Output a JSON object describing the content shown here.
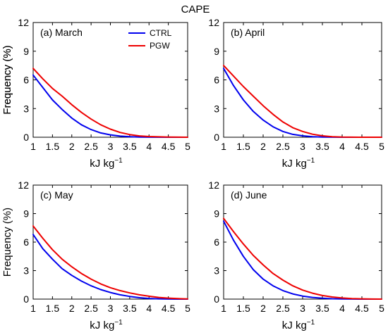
{
  "figure_title": "CAPE",
  "colors": {
    "ctrl": "#0000ee",
    "pgw": "#ee0000"
  },
  "chart_data": [
    {
      "type": "line",
      "panel_label": "(a) March",
      "xlabel": "kJ kg",
      "xlabel_sup": "−1",
      "ylabel": "Frequency (%)",
      "xlim": [
        1,
        5
      ],
      "ylim": [
        0,
        12
      ],
      "xticks": [
        1,
        1.5,
        2,
        2.5,
        3,
        3.5,
        4,
        4.5,
        5
      ],
      "yticks": [
        0,
        3,
        6,
        9,
        12
      ],
      "legend": "top-center",
      "x": [
        1,
        1.25,
        1.5,
        1.75,
        2,
        2.25,
        2.5,
        2.75,
        3,
        3.25,
        3.5,
        3.75,
        4,
        4.5,
        5
      ],
      "series": [
        {
          "name": "CTRL",
          "color": "#0000ee",
          "values": [
            6.5,
            5.2,
            3.9,
            2.9,
            2.0,
            1.3,
            0.8,
            0.45,
            0.25,
            0.12,
            0.05,
            0.02,
            0.01,
            0,
            0
          ]
        },
        {
          "name": "PGW",
          "color": "#ee0000",
          "values": [
            7.2,
            6.1,
            5.1,
            4.3,
            3.4,
            2.6,
            1.9,
            1.3,
            0.85,
            0.5,
            0.28,
            0.14,
            0.07,
            0.02,
            0
          ]
        }
      ]
    },
    {
      "type": "line",
      "panel_label": "(b) April",
      "xlabel": "kJ kg",
      "xlabel_sup": "−1",
      "ylabel": "Frequency (%)",
      "xlim": [
        1,
        5
      ],
      "ylim": [
        0,
        12
      ],
      "xticks": [
        1,
        1.5,
        2,
        2.5,
        3,
        3.5,
        4,
        4.5,
        5
      ],
      "yticks": [
        0,
        3,
        6,
        9,
        12
      ],
      "x": [
        1,
        1.25,
        1.5,
        1.75,
        2,
        2.25,
        2.5,
        2.75,
        3,
        3.25,
        3.5,
        3.75,
        4,
        4.5,
        5
      ],
      "series": [
        {
          "name": "CTRL",
          "color": "#0000ee",
          "values": [
            7.2,
            5.4,
            3.9,
            2.7,
            1.8,
            1.1,
            0.6,
            0.3,
            0.15,
            0.06,
            0.02,
            0.01,
            0,
            0,
            0
          ]
        },
        {
          "name": "PGW",
          "color": "#ee0000",
          "values": [
            7.5,
            6.4,
            5.3,
            4.3,
            3.3,
            2.4,
            1.6,
            1.0,
            0.6,
            0.32,
            0.15,
            0.06,
            0.02,
            0,
            0
          ]
        }
      ]
    },
    {
      "type": "line",
      "panel_label": "(c) May",
      "xlabel": "kJ kg",
      "xlabel_sup": "−1",
      "ylabel": "Frequency (%)",
      "xlim": [
        1,
        5
      ],
      "ylim": [
        0,
        12
      ],
      "xticks": [
        1,
        1.5,
        2,
        2.5,
        3,
        3.5,
        4,
        4.5,
        5
      ],
      "yticks": [
        0,
        3,
        6,
        9,
        12
      ],
      "x": [
        1,
        1.25,
        1.5,
        1.75,
        2,
        2.25,
        2.5,
        2.75,
        3,
        3.25,
        3.5,
        3.75,
        4,
        4.25,
        4.5,
        4.75,
        5
      ],
      "series": [
        {
          "name": "CTRL",
          "color": "#0000ee",
          "values": [
            6.8,
            5.3,
            4.2,
            3.2,
            2.5,
            1.9,
            1.4,
            1.0,
            0.7,
            0.45,
            0.28,
            0.15,
            0.07,
            0.03,
            0.01,
            0,
            0
          ]
        },
        {
          "name": "PGW",
          "color": "#ee0000",
          "values": [
            7.7,
            6.4,
            5.2,
            4.2,
            3.4,
            2.7,
            2.1,
            1.6,
            1.2,
            0.9,
            0.65,
            0.45,
            0.3,
            0.18,
            0.1,
            0.05,
            0.02
          ]
        }
      ]
    },
    {
      "type": "line",
      "panel_label": "(d) June",
      "xlabel": "kJ kg",
      "xlabel_sup": "−1",
      "ylabel": "",
      "xlim": [
        1,
        5
      ],
      "ylim": [
        0,
        12
      ],
      "xticks": [
        1,
        1.5,
        2,
        2.5,
        3,
        3.5,
        4,
        4.5,
        5
      ],
      "yticks": [
        0,
        3,
        6,
        9,
        12
      ],
      "x": [
        1,
        1.25,
        1.5,
        1.75,
        2,
        2.25,
        2.5,
        2.75,
        3,
        3.25,
        3.5,
        3.75,
        4,
        4.25,
        4.5,
        4.75,
        5
      ],
      "series": [
        {
          "name": "CTRL",
          "color": "#0000ee",
          "values": [
            8.2,
            6.2,
            4.5,
            3.1,
            2.1,
            1.4,
            0.9,
            0.55,
            0.32,
            0.18,
            0.09,
            0.04,
            0.02,
            0.01,
            0,
            0,
            0
          ]
        },
        {
          "name": "PGW",
          "color": "#ee0000",
          "values": [
            8.5,
            7.1,
            5.8,
            4.6,
            3.6,
            2.7,
            2.0,
            1.4,
            0.95,
            0.62,
            0.38,
            0.22,
            0.12,
            0.06,
            0.03,
            0.01,
            0
          ]
        }
      ]
    }
  ]
}
